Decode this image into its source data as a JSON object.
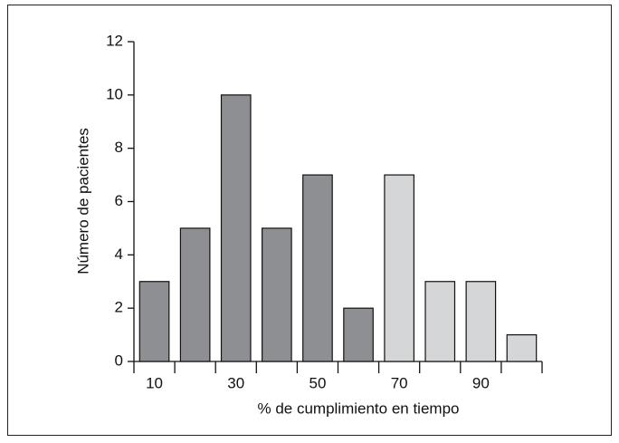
{
  "chart_data": {
    "type": "bar",
    "x_label": "% de cumplimiento en tiempo",
    "y_label": "Número de pacientes",
    "categories": [
      "10",
      null,
      "30",
      null,
      "50",
      null,
      "70",
      null,
      "90",
      null
    ],
    "values": [
      3,
      5,
      10,
      5,
      7,
      2,
      7,
      3,
      3,
      1
    ],
    "colors": [
      "#8e8f93",
      "#8e8f93",
      "#8e8f93",
      "#8e8f93",
      "#8e8f93",
      "#8e8f93",
      "#d5d6d8",
      "#d5d6d8",
      "#d5d6d8",
      "#d5d6d8"
    ],
    "ylim": [
      0,
      12
    ],
    "yticks": [
      0,
      2,
      4,
      6,
      8,
      10,
      12
    ],
    "grid": false
  }
}
